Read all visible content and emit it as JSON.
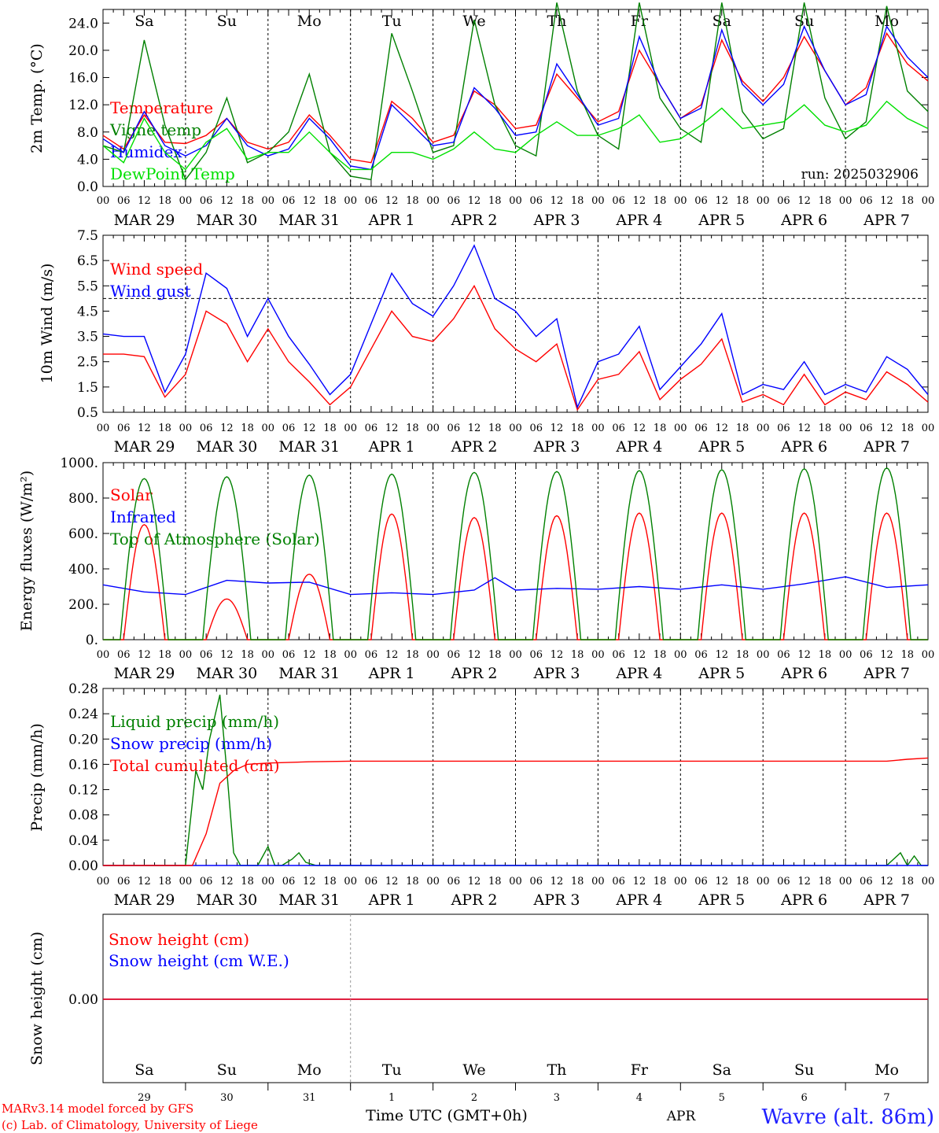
{
  "colors": {
    "red": "#ff0000",
    "blue": "#0000ff",
    "dark_green": "#008000",
    "light_green": "#00e000",
    "black": "#000000"
  },
  "day_labels": [
    "Sa",
    "Su",
    "Mo",
    "Tu",
    "We",
    "Th",
    "Fr",
    "Sa",
    "Su",
    "Mo"
  ],
  "day_label_colors": [
    "#ff0000",
    "#ff0000",
    "#000000",
    "#000000",
    "#000000",
    "#000000",
    "#000000",
    "#ff0000",
    "#ff0000",
    "#000000"
  ],
  "date_labels": [
    "MAR 29",
    "MAR 30",
    "MAR 31",
    "APR  1",
    "APR  2",
    "APR  3",
    "APR  4",
    "APR  5",
    "APR  6",
    "APR  7"
  ],
  "hour_labels": [
    "00",
    "06",
    "12",
    "18"
  ],
  "bottom_day_numbers": [
    "29",
    "30",
    "31",
    "1",
    "2",
    "3",
    "4",
    "5",
    "6",
    "7"
  ],
  "footer": {
    "credit_line1": "MARv3.14 model forced by GFS",
    "credit_line2": "(c) Lab. of Climatology, University of Liege",
    "xlabel": "Time UTC (GMT+0h)",
    "month": "APR",
    "station": "Wavre (alt. 86m)"
  },
  "panels": {
    "temp": {
      "ylabel": "2m Temp. (°C)",
      "run": "run: 2025032906",
      "ticks": [
        "0.0",
        "4.0",
        "8.0",
        "12.0",
        "16.0",
        "20.0",
        "24.0"
      ],
      "legend": [
        "Temperature",
        "Vigne temp",
        "Humidex",
        "DewPoint Temp"
      ]
    },
    "wind": {
      "ylabel": "10m Wind (m/s)",
      "ticks": [
        "0.5",
        "1.5",
        "2.5",
        "3.5",
        "4.5",
        "5.5",
        "6.5",
        "7.5"
      ],
      "legend": [
        "Wind speed",
        "Wind gust"
      ]
    },
    "energy": {
      "ylabel": "Energy fluxes (W/m²)",
      "ticks": [
        "0.",
        "200.",
        "400.",
        "600.",
        "800.",
        "1000."
      ],
      "legend": [
        "Solar",
        "Infrared",
        "Top of Atmosphere (Solar)"
      ]
    },
    "precip": {
      "ylabel": "Precip (mm/h)",
      "ticks": [
        "0.00",
        "0.04",
        "0.08",
        "0.12",
        "0.16",
        "0.20",
        "0.24",
        "0.28"
      ],
      "legend": [
        "Liquid precip (mm/h)",
        "Snow precip (mm/h)",
        "Total cumulated (cm)"
      ]
    },
    "snow": {
      "ylabel": "Snow height (cm)",
      "ticks": [
        "0.00"
      ],
      "legend": [
        "Snow height (cm)",
        "Snow height (cm W.E.)"
      ]
    }
  },
  "chart_data": [
    {
      "type": "line",
      "ylabel": "2m Temp. (°C)",
      "ylim": [
        0,
        26
      ],
      "x_unit": "hours since 29 Mar 00 UTC",
      "series": [
        {
          "name": "Temperature",
          "color": "#ff0000",
          "x": [
            0,
            6,
            12,
            18,
            24,
            30,
            36,
            42,
            48,
            54,
            60,
            66,
            72,
            78,
            84,
            90,
            96,
            102,
            108,
            114,
            120,
            126,
            132,
            138,
            144,
            150,
            156,
            162,
            168,
            174,
            180,
            186,
            192,
            198,
            204,
            210,
            216,
            222,
            228,
            234,
            240
          ],
          "y": [
            7.5,
            5.5,
            10.5,
            6.5,
            6.3,
            7.5,
            10.0,
            6.5,
            5.5,
            6.5,
            10.5,
            7.5,
            4.0,
            3.5,
            12.5,
            10.0,
            6.5,
            7.5,
            14.0,
            12.0,
            8.5,
            9.0,
            16.5,
            13.0,
            9.5,
            11.0,
            20.0,
            15.0,
            10.0,
            12.0,
            21.5,
            15.5,
            12.5,
            16.0,
            22.0,
            17.0,
            12.0,
            14.5,
            22.5,
            18.0,
            15.5
          ]
        },
        {
          "name": "Vigne temp",
          "color": "#008000",
          "x": [
            0,
            6,
            12,
            18,
            24,
            30,
            36,
            42,
            48,
            54,
            60,
            66,
            72,
            78,
            84,
            90,
            96,
            102,
            108,
            114,
            120,
            126,
            132,
            138,
            144,
            150,
            156,
            162,
            168,
            174,
            180,
            186,
            192,
            198,
            204,
            210,
            216,
            222,
            228,
            234,
            240
          ],
          "y": [
            6.0,
            5.0,
            21.5,
            9.0,
            1.0,
            5.0,
            13.0,
            3.5,
            5.0,
            8.0,
            16.5,
            5.0,
            1.5,
            1.0,
            22.5,
            14.0,
            5.0,
            6.0,
            24.5,
            12.0,
            6.0,
            4.5,
            27.0,
            14.0,
            7.5,
            5.5,
            27.0,
            13.0,
            8.5,
            6.5,
            27.0,
            11.0,
            7.0,
            8.5,
            27.0,
            13.0,
            7.0,
            9.5,
            26.5,
            14.0,
            11.0
          ]
        },
        {
          "name": "Humidex",
          "color": "#0000ff",
          "x": [
            0,
            6,
            12,
            18,
            24,
            30,
            36,
            42,
            48,
            54,
            60,
            66,
            72,
            78,
            84,
            90,
            96,
            102,
            108,
            114,
            120,
            126,
            132,
            138,
            144,
            150,
            156,
            162,
            168,
            174,
            180,
            186,
            192,
            198,
            204,
            210,
            216,
            222,
            228,
            234,
            240
          ],
          "y": [
            7.0,
            5.0,
            11.0,
            6.0,
            4.5,
            6.0,
            10.0,
            6.0,
            4.5,
            5.5,
            10.0,
            7.0,
            3.0,
            2.5,
            12.0,
            9.0,
            6.0,
            6.5,
            14.5,
            11.5,
            7.5,
            8.0,
            18.0,
            13.5,
            9.0,
            10.0,
            22.0,
            15.0,
            10.0,
            11.5,
            23.0,
            15.0,
            12.0,
            15.0,
            23.5,
            17.0,
            12.0,
            13.5,
            23.5,
            19.0,
            16.0
          ]
        },
        {
          "name": "DewPoint Temp",
          "color": "#00e000",
          "x": [
            0,
            6,
            12,
            18,
            24,
            30,
            36,
            42,
            48,
            54,
            60,
            66,
            72,
            78,
            84,
            90,
            96,
            102,
            108,
            114,
            120,
            126,
            132,
            138,
            144,
            150,
            156,
            162,
            168,
            174,
            180,
            186,
            192,
            198,
            204,
            210,
            216,
            222,
            228,
            234,
            240
          ],
          "y": [
            6.0,
            3.5,
            10.0,
            5.0,
            2.5,
            6.5,
            8.5,
            4.0,
            5.0,
            5.0,
            8.0,
            5.0,
            2.5,
            2.5,
            5.0,
            5.0,
            4.0,
            5.5,
            8.0,
            5.5,
            5.0,
            7.5,
            9.5,
            7.5,
            7.5,
            8.5,
            10.5,
            6.5,
            7.0,
            9.0,
            11.5,
            8.5,
            9.0,
            9.5,
            12.0,
            9.0,
            8.0,
            9.0,
            12.5,
            10.0,
            8.5
          ]
        }
      ]
    },
    {
      "type": "line",
      "ylabel": "10m Wind (m/s)",
      "ylim": [
        0.5,
        7.5
      ],
      "reference_line": 5.0,
      "x_unit": "hours since 29 Mar 00 UTC",
      "series": [
        {
          "name": "Wind speed",
          "color": "#ff0000",
          "x": [
            0,
            6,
            12,
            18,
            24,
            30,
            36,
            42,
            48,
            54,
            60,
            66,
            72,
            78,
            84,
            90,
            96,
            102,
            108,
            114,
            120,
            126,
            132,
            138,
            144,
            150,
            156,
            162,
            168,
            174,
            180,
            186,
            192,
            198,
            204,
            210,
            216,
            222,
            228,
            234,
            240
          ],
          "y": [
            2.8,
            2.8,
            2.7,
            1.1,
            2.0,
            4.5,
            4.0,
            2.5,
            3.8,
            2.5,
            1.7,
            0.8,
            1.5,
            3.0,
            4.5,
            3.5,
            3.3,
            4.2,
            5.5,
            3.8,
            3.0,
            2.5,
            3.2,
            0.6,
            1.8,
            2.0,
            2.9,
            1.0,
            1.8,
            2.4,
            3.4,
            0.9,
            1.2,
            0.8,
            2.0,
            0.8,
            1.3,
            1.0,
            2.1,
            1.6,
            0.9
          ]
        },
        {
          "name": "Wind gust",
          "color": "#0000ff",
          "x": [
            0,
            6,
            12,
            18,
            24,
            30,
            36,
            42,
            48,
            54,
            60,
            66,
            72,
            78,
            84,
            90,
            96,
            102,
            108,
            114,
            120,
            126,
            132,
            138,
            144,
            150,
            156,
            162,
            168,
            174,
            180,
            186,
            192,
            198,
            204,
            210,
            216,
            222,
            228,
            234,
            240
          ],
          "y": [
            3.6,
            3.5,
            3.5,
            1.3,
            2.8,
            6.0,
            5.4,
            3.5,
            5.0,
            3.5,
            2.4,
            1.2,
            2.0,
            4.0,
            6.0,
            4.8,
            4.3,
            5.5,
            7.1,
            5.0,
            4.5,
            3.5,
            4.2,
            0.7,
            2.5,
            2.8,
            3.9,
            1.4,
            2.3,
            3.2,
            4.4,
            1.2,
            1.6,
            1.4,
            2.5,
            1.2,
            1.6,
            1.3,
            2.7,
            2.2,
            1.2
          ]
        }
      ]
    },
    {
      "type": "line",
      "ylabel": "Energy fluxes (W/m²)",
      "ylim": [
        0,
        1000
      ],
      "x_unit": "hours since 29 Mar 00 UTC",
      "series": [
        {
          "name": "Solar",
          "color": "#ff0000",
          "daily_peak_hour": 12,
          "daily_peaks": [
            650,
            230,
            370,
            710,
            690,
            700,
            715,
            715,
            715,
            715
          ]
        },
        {
          "name": "Infrared",
          "color": "#0000ff",
          "x": [
            0,
            12,
            24,
            36,
            48,
            60,
            72,
            84,
            96,
            108,
            114,
            120,
            132,
            144,
            156,
            168,
            180,
            192,
            204,
            216,
            228,
            240
          ],
          "y": [
            310,
            270,
            255,
            335,
            320,
            325,
            255,
            265,
            255,
            280,
            350,
            280,
            290,
            285,
            300,
            285,
            310,
            285,
            315,
            355,
            295,
            310
          ]
        },
        {
          "name": "Top of Atmosphere (Solar)",
          "color": "#008000",
          "daily_peak_hour": 12,
          "daily_peaks": [
            910,
            920,
            930,
            935,
            945,
            950,
            955,
            960,
            965,
            970
          ]
        }
      ]
    },
    {
      "type": "line",
      "ylabel": "Precip (mm/h)",
      "ylim": [
        0,
        0.28
      ],
      "x_unit": "hours since 29 Mar 00 UTC",
      "series": [
        {
          "name": "Liquid precip (mm/h)",
          "color": "#008000",
          "x": [
            0,
            24,
            27,
            29,
            31,
            34,
            36,
            38,
            40,
            42,
            45,
            48,
            50,
            52,
            55,
            57,
            59,
            62,
            64,
            66,
            68,
            72,
            228,
            232,
            234,
            236,
            238,
            240
          ],
          "y": [
            0,
            0,
            0.15,
            0.12,
            0.2,
            0.27,
            0.15,
            0.02,
            0,
            0,
            0,
            0.03,
            0,
            0,
            0.01,
            0.02,
            0.005,
            0,
            0,
            0,
            0,
            0,
            0,
            0.02,
            0,
            0.015,
            0,
            0
          ]
        },
        {
          "name": "Snow precip (mm/h)",
          "color": "#0000ff",
          "x": [
            0,
            240
          ],
          "y": [
            0,
            0
          ]
        },
        {
          "name": "Total cumulated (cm)",
          "color": "#ff0000",
          "x": [
            0,
            26,
            30,
            34,
            38,
            42,
            48,
            60,
            72,
            120,
            180,
            228,
            234,
            240
          ],
          "y": [
            0,
            0,
            0.05,
            0.13,
            0.15,
            0.16,
            0.162,
            0.164,
            0.165,
            0.165,
            0.165,
            0.165,
            0.168,
            0.17
          ]
        }
      ]
    },
    {
      "type": "line",
      "ylabel": "Snow height (cm)",
      "series": [
        {
          "name": "Snow height (cm)",
          "color": "#ff0000",
          "x": [
            0,
            240
          ],
          "y": [
            0,
            0
          ]
        },
        {
          "name": "Snow height (cm W.E.)",
          "color": "#0000ff",
          "x": [
            0,
            240
          ],
          "y": [
            0,
            0
          ]
        }
      ]
    }
  ]
}
